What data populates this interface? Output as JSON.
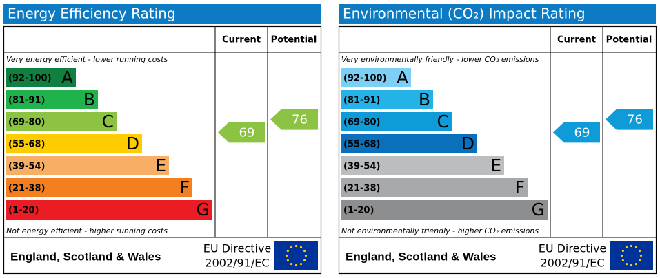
{
  "panels": [
    {
      "title": "Energy Efficiency Rating",
      "headers": [
        "Current",
        "Potential"
      ],
      "top_note": "Very energy efficient - lower running costs",
      "bottom_note": "Not energy efficient - higher running costs",
      "bands": [
        {
          "range": "(92-100)",
          "letter": "A",
          "color": "#0f8040"
        },
        {
          "range": "(81-91)",
          "letter": "B",
          "color": "#20b24b"
        },
        {
          "range": "(69-80)",
          "letter": "C",
          "color": "#8cc342"
        },
        {
          "range": "(55-68)",
          "letter": "D",
          "color": "#ffcc00"
        },
        {
          "range": "(39-54)",
          "letter": "E",
          "color": "#f7ae65"
        },
        {
          "range": "(21-38)",
          "letter": "F",
          "color": "#f47f20"
        },
        {
          "range": "(1-20)",
          "letter": "G",
          "color": "#ec1c24"
        }
      ],
      "current": 69,
      "potential": 76,
      "footer": {
        "region": "England, Scotland & Wales",
        "directive": "EU Directive",
        "directive_number": "2002/91/EC"
      }
    },
    {
      "title": "Environmental (CO₂) Impact Rating",
      "headers": [
        "Current",
        "Potential"
      ],
      "top_note": "Very environmentally friendly - lower CO₂ emissions",
      "bottom_note": "Not environmentally friendly - higher CO₂ emissions",
      "bands": [
        {
          "range": "(92-100)",
          "letter": "A",
          "color": "#7dcff5"
        },
        {
          "range": "(81-91)",
          "letter": "B",
          "color": "#25b2e6"
        },
        {
          "range": "(69-80)",
          "letter": "C",
          "color": "#0f9bd8"
        },
        {
          "range": "(55-68)",
          "letter": "D",
          "color": "#0a70bb"
        },
        {
          "range": "(39-54)",
          "letter": "E",
          "color": "#bbbdbf"
        },
        {
          "range": "(21-38)",
          "letter": "F",
          "color": "#a7a9ac"
        },
        {
          "range": "(1-20)",
          "letter": "G",
          "color": "#8d8e90"
        }
      ],
      "current": 69,
      "potential": 76,
      "footer": {
        "region": "England, Scotland & Wales",
        "directive": "EU Directive",
        "directive_number": "2002/91/EC"
      }
    }
  ]
}
